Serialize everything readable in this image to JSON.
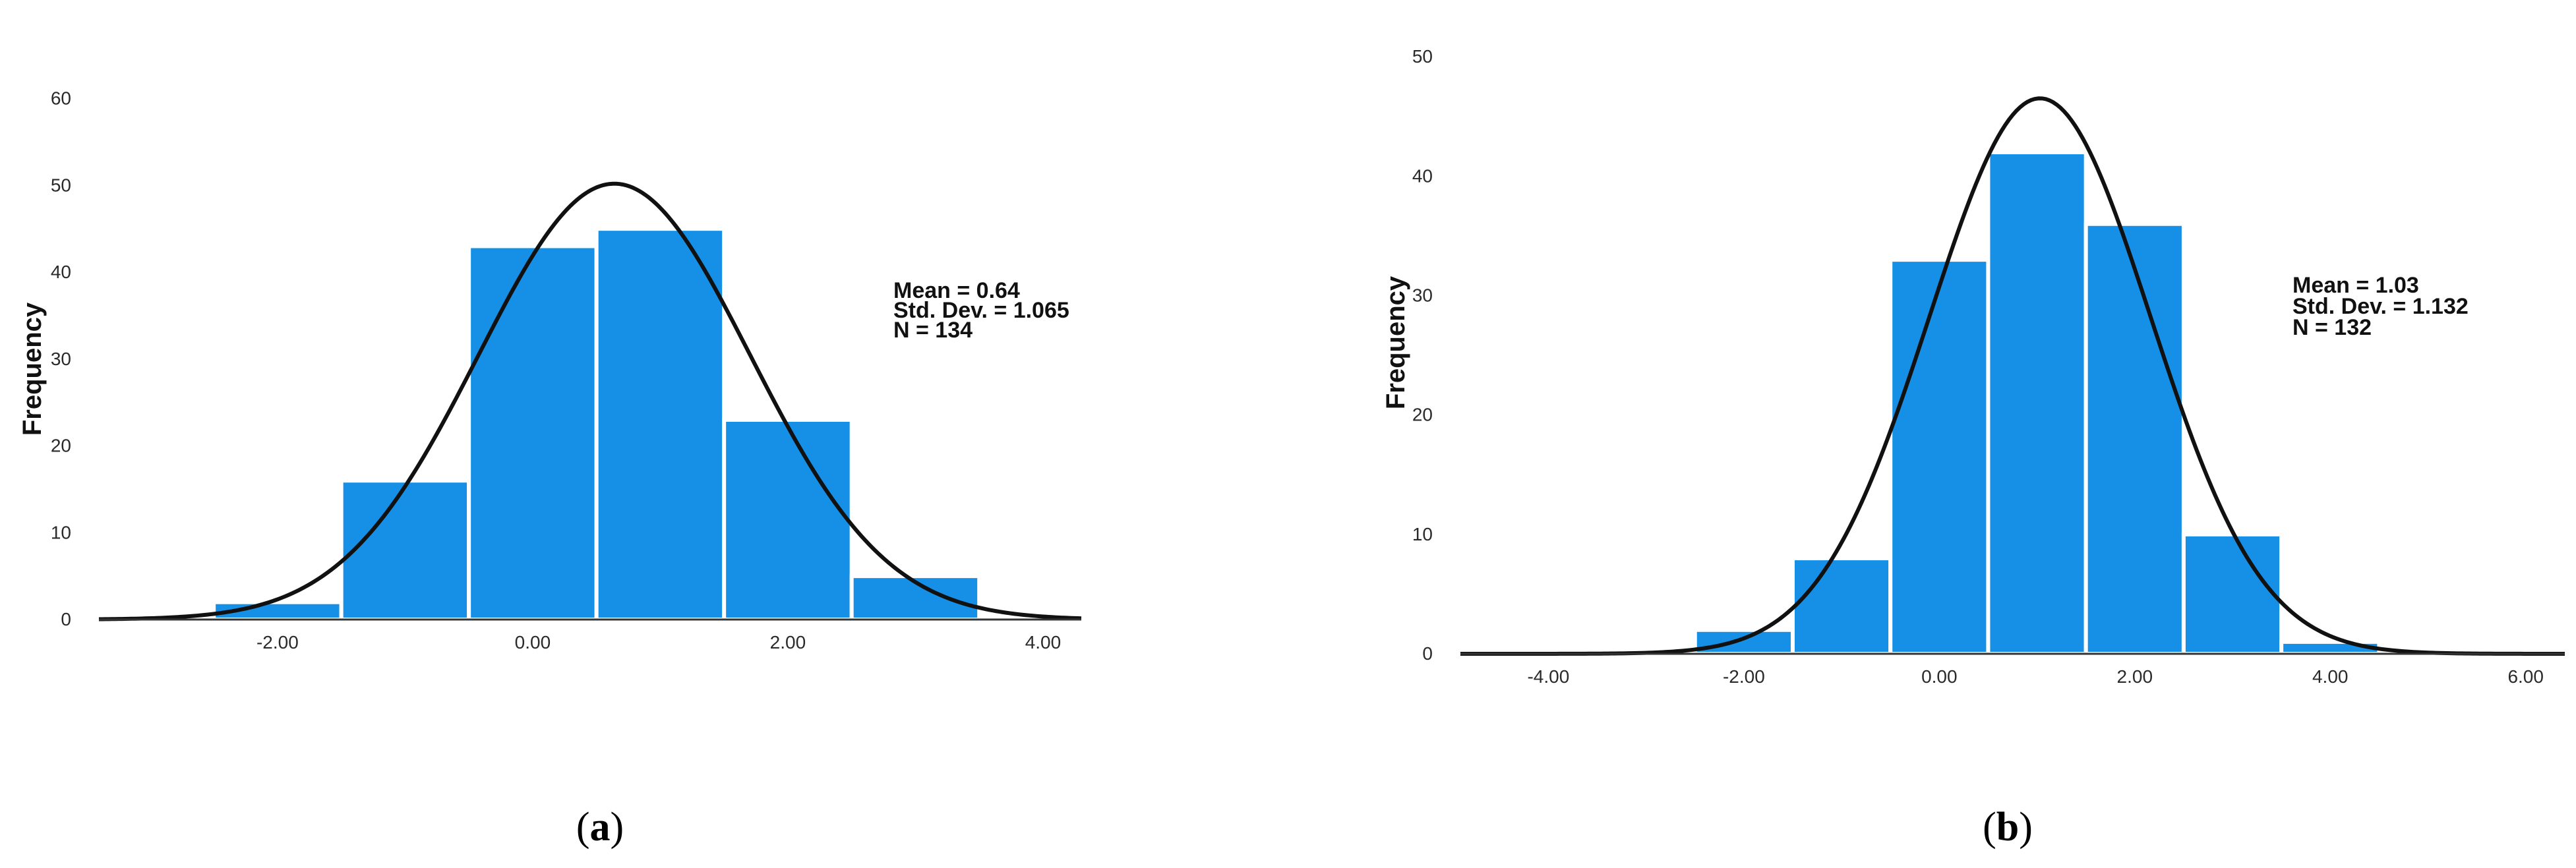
{
  "colors": {
    "bar_fill": "#1590E6",
    "bar_edge": "#FFFFFF",
    "curve": "#111111",
    "axis": "#333333",
    "text": "#111111"
  },
  "chart_data": [
    {
      "type": "bar",
      "panel_label": "a",
      "ylabel": "Frequency",
      "xlabel": "",
      "xlim": [
        -3.4,
        4.3
      ],
      "ylim": [
        0,
        63
      ],
      "x_ticks": [
        -2,
        0,
        2,
        4
      ],
      "x_tick_labels": [
        "-2.00",
        "0.00",
        "2.00",
        "4.00"
      ],
      "y_ticks": [
        0,
        10,
        20,
        30,
        40,
        50,
        60
      ],
      "y_tick_labels": [
        "0",
        "10",
        "20",
        "30",
        "40",
        "50",
        "60"
      ],
      "bin_width": 1,
      "bins": [
        {
          "center": -2,
          "count": 2
        },
        {
          "center": -1,
          "count": 16
        },
        {
          "center": 0,
          "count": 43
        },
        {
          "center": 1,
          "count": 45
        },
        {
          "center": 2,
          "count": 23
        },
        {
          "center": 3,
          "count": 5
        }
      ],
      "normal_curve": {
        "mean": 0.64,
        "sd": 1.065,
        "n": 134
      },
      "stats": [
        "Mean = 0.64",
        "Std. Dev. = 1.065",
        "N = 134"
      ],
      "legend_position": "right",
      "grid": false
    },
    {
      "type": "bar",
      "panel_label": "b",
      "ylabel": "Frequency",
      "xlabel": "",
      "xlim": [
        -4.9,
        6.4
      ],
      "ylim": [
        0,
        51
      ],
      "x_ticks": [
        -4,
        -2,
        0,
        2,
        4,
        6
      ],
      "x_tick_labels": [
        "-4.00",
        "-2.00",
        "0.00",
        "2.00",
        "4.00",
        "6.00"
      ],
      "y_ticks": [
        0,
        10,
        20,
        30,
        40,
        50
      ],
      "y_tick_labels": [
        "0",
        "10",
        "20",
        "30",
        "40",
        "50"
      ],
      "bin_width": 1,
      "bins": [
        {
          "center": -2,
          "count": 2
        },
        {
          "center": -1,
          "count": 8
        },
        {
          "center": 0,
          "count": 33
        },
        {
          "center": 1,
          "count": 42
        },
        {
          "center": 2,
          "count": 36
        },
        {
          "center": 3,
          "count": 10
        },
        {
          "center": 4,
          "count": 1
        }
      ],
      "normal_curve": {
        "mean": 1.03,
        "sd": 1.132,
        "n": 132
      },
      "stats": [
        "Mean = 1.03",
        "Std. Dev. = 1.132",
        "N = 132"
      ],
      "legend_position": "right",
      "grid": false
    }
  ],
  "captions": [
    {
      "open": "(",
      "letter": "a",
      "close": ")"
    },
    {
      "open": "(",
      "letter": "b",
      "close": ")"
    }
  ]
}
